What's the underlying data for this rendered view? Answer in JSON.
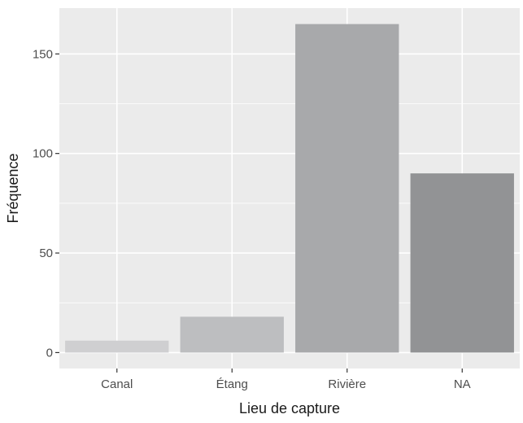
{
  "chart_data": {
    "type": "bar",
    "categories": [
      "Canal",
      "Étang",
      "Rivière",
      "NA"
    ],
    "values": [
      6,
      18,
      165,
      90
    ],
    "xlabel": "Lieu de capture",
    "ylabel": "Fréquence",
    "ylim": [
      -8,
      173
    ],
    "yticks": [
      0,
      50,
      100,
      150
    ],
    "grid": true,
    "bar_colors": [
      "#cfcfd1",
      "#bdbec0",
      "#a8a9ab",
      "#929395"
    ],
    "panel_background": "#ebebeb",
    "grid_color": "#ffffff"
  }
}
